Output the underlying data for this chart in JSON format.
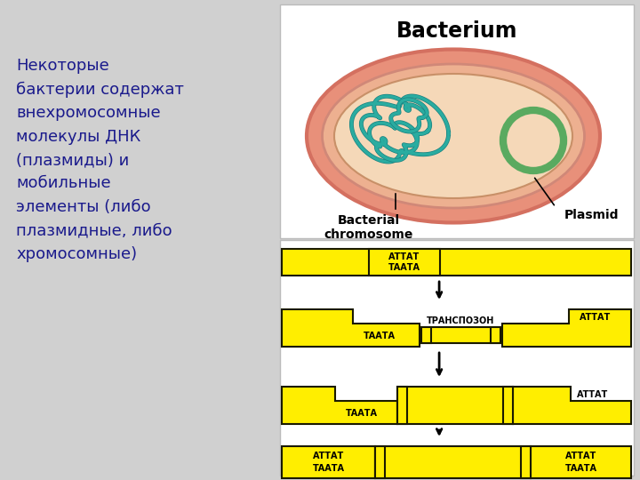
{
  "bg_color": "#d0d0d0",
  "text_left": "Некоторые\nбактерии содержат\nвнехромосомные\nмолекулы ДНК\n(плазмиды) и\nмобильные\nэлементы (либо\nплазмидные, либо\nхромосомные)",
  "text_color": "#1a1a8c",
  "title_bacterium": "Bacterium",
  "label_bact_chr": "Bacterial\nchromosome",
  "label_plasmid": "Plasmid",
  "yellow": "#FFEE00",
  "yellow_border": "#1a1a00",
  "transposon_label": "ТРАНСПОЗОН",
  "row1_labels": [
    "АТТАТ",
    "ТААТА"
  ],
  "row2_left_label": "ТААТА",
  "row2_right_label": "АТТАТ",
  "row3_left_label": "ТААТА",
  "row3_right_label": "АТТАТ",
  "row4_left_labels": [
    "АТТАТ",
    "ТААТА"
  ],
  "row4_right_labels": [
    "АТТАТ",
    "ТААТА"
  ],
  "cell_outer_color": "#E8907A",
  "cell_outer_edge": "#D47060",
  "cell_mid_color": "#EDB090",
  "cell_inner_color": "#F5D8B8",
  "chr_color": "#2AACA0",
  "chr_edge": "#1A8080",
  "plasmid_color": "#5AAA60",
  "plasmid_inner": "#F5D8B8"
}
